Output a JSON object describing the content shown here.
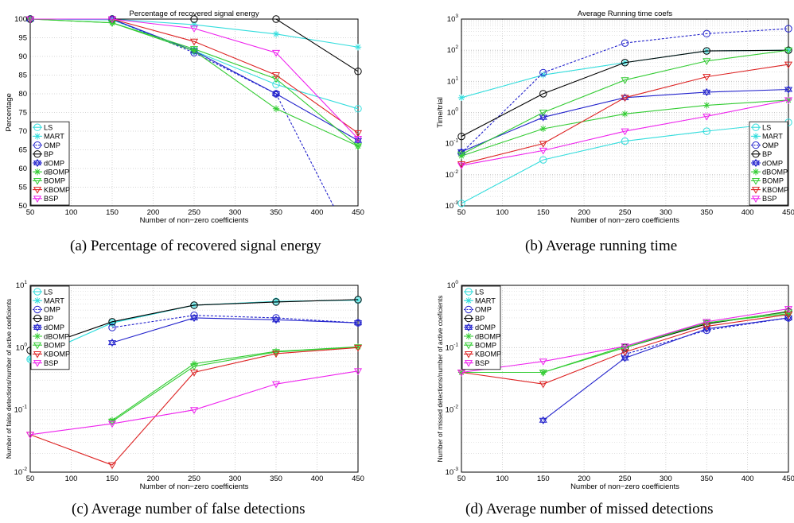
{
  "captions": {
    "a": "(a) Percentage of recovered signal energy",
    "b": "(b) Average running time",
    "c": "(c) Average number of false detections",
    "d": "(d) Average number of missed detections"
  },
  "legend_entries": [
    "LS",
    "MART",
    "OMP",
    "BP",
    "dOMP",
    "dBOMP",
    "BOMP",
    "KBOMP",
    "BSP"
  ],
  "series_styles": [
    {
      "name": "LS",
      "color": "#33dddd",
      "marker": "circle",
      "dash": false
    },
    {
      "name": "MART",
      "color": "#33dddd",
      "marker": "star",
      "dash": false
    },
    {
      "name": "OMP",
      "color": "#2222cc",
      "marker": "circle",
      "dash": true
    },
    {
      "name": "BP",
      "color": "#000000",
      "marker": "circle",
      "dash": false
    },
    {
      "name": "dOMP",
      "color": "#2222cc",
      "marker": "hexagram",
      "dash": false
    },
    {
      "name": "dBOMP",
      "color": "#33cc33",
      "marker": "star",
      "dash": false
    },
    {
      "name": "BOMP",
      "color": "#33cc33",
      "marker": "triangle-down",
      "dash": false
    },
    {
      "name": "KBOMP",
      "color": "#dd2222",
      "marker": "triangle-down",
      "dash": false
    },
    {
      "name": "BSP",
      "color": "#ee22ee",
      "marker": "triangle-down",
      "dash": false
    }
  ],
  "chart_data": [
    {
      "id": "a",
      "type": "line",
      "title": "Percentage of recovered signal energy",
      "xlabel": "Number of non−zero coefficients",
      "ylabel": "Percentage",
      "xlim": [
        50,
        450
      ],
      "ylim": [
        50,
        100
      ],
      "scale": "linear",
      "xticks": [
        "50",
        "100",
        "150",
        "200",
        "250",
        "300",
        "350",
        "400",
        "450"
      ],
      "yticks": [
        "50",
        "55",
        "60",
        "65",
        "70",
        "75",
        "80",
        "85",
        "90",
        "95",
        "100"
      ],
      "legend_position": "bottom-left",
      "series": [
        {
          "name": "LS",
          "x": [
            50,
            150,
            250,
            350,
            450
          ],
          "y": [
            100,
            99.8,
            91.5,
            82.5,
            76
          ]
        },
        {
          "name": "MART",
          "x": [
            50,
            150,
            250,
            350,
            450
          ],
          "y": [
            100,
            100,
            98.5,
            96,
            92.5
          ]
        },
        {
          "name": "OMP",
          "x": [
            50,
            150,
            250,
            350,
            420
          ],
          "y": [
            100,
            100,
            91,
            80,
            50
          ]
        },
        {
          "name": "BP",
          "x": [
            50,
            150,
            250,
            350,
            450
          ],
          "y": [
            100,
            100,
            100,
            100,
            86
          ]
        },
        {
          "name": "dOMP",
          "x": [
            50,
            150,
            250,
            350,
            450
          ],
          "y": [
            100,
            100,
            91.5,
            80,
            67.5
          ]
        },
        {
          "name": "dBOMP",
          "x": [
            50,
            150,
            250,
            350,
            450
          ],
          "y": [
            100,
            99,
            91.5,
            76,
            66
          ]
        },
        {
          "name": "BOMP",
          "x": [
            50,
            150,
            250,
            350,
            450
          ],
          "y": [
            100,
            99,
            92,
            84,
            66
          ]
        },
        {
          "name": "KBOMP",
          "x": [
            50,
            150,
            250,
            350,
            450
          ],
          "y": [
            100,
            100,
            94,
            85,
            69.5
          ]
        },
        {
          "name": "BSP",
          "x": [
            50,
            150,
            250,
            350,
            450
          ],
          "y": [
            100,
            100,
            97.5,
            91,
            68
          ]
        }
      ]
    },
    {
      "id": "b",
      "type": "line",
      "title": "Average Running time coefs",
      "xlabel": "Number of non−zero coefficients",
      "ylabel": "Time/trial",
      "xlim": [
        50,
        450
      ],
      "ylim_exp": [
        -3,
        3
      ],
      "scale": "log",
      "xticks": [
        "50",
        "100",
        "150",
        "200",
        "250",
        "300",
        "350",
        "400",
        "450"
      ],
      "legend_position": "bottom-right",
      "series": [
        {
          "name": "LS",
          "x": [
            50,
            150,
            250,
            350,
            450
          ],
          "y": [
            0.0012,
            0.03,
            0.12,
            0.25,
            0.48
          ]
        },
        {
          "name": "MART",
          "x": [
            50,
            150,
            250,
            350,
            450
          ],
          "y": [
            3,
            16,
            40,
            95,
            100
          ]
        },
        {
          "name": "OMP",
          "x": [
            50,
            150,
            250,
            350,
            450
          ],
          "y": [
            0.05,
            19,
            170,
            340,
            490
          ]
        },
        {
          "name": "BP",
          "x": [
            50,
            150,
            250,
            350,
            450
          ],
          "y": [
            0.17,
            4,
            40,
            95,
            100
          ]
        },
        {
          "name": "dOMP",
          "x": [
            50,
            150,
            250,
            350,
            450
          ],
          "y": [
            0.055,
            0.7,
            3,
            4.5,
            5.5
          ]
        },
        {
          "name": "dBOMP",
          "x": [
            50,
            150,
            250,
            350,
            450
          ],
          "y": [
            0.04,
            0.3,
            0.9,
            1.7,
            2.5
          ]
        },
        {
          "name": "BOMP",
          "x": [
            50,
            150,
            250,
            350,
            450
          ],
          "y": [
            0.045,
            1,
            11,
            45,
            100
          ]
        },
        {
          "name": "KBOMP",
          "x": [
            50,
            150,
            250,
            350,
            450
          ],
          "y": [
            0.022,
            0.1,
            3,
            14,
            35
          ]
        },
        {
          "name": "BSP",
          "x": [
            50,
            150,
            250,
            350,
            450
          ],
          "y": [
            0.02,
            0.06,
            0.25,
            0.75,
            2.5
          ]
        }
      ]
    },
    {
      "id": "c",
      "type": "line",
      "title": "",
      "xlabel": "Number of non−zero coefficients",
      "ylabel": "Number of false detections/number of active coeficients",
      "xlim": [
        50,
        450
      ],
      "ylim_exp": [
        -2,
        1
      ],
      "scale": "log",
      "xticks": [
        "50",
        "100",
        "150",
        "200",
        "250",
        "300",
        "350",
        "400",
        "450"
      ],
      "legend_position": "top-left",
      "series": [
        {
          "name": "LS",
          "x": [
            50,
            150,
            250,
            350,
            450
          ],
          "y": [
            0.65,
            2.5,
            4.8,
            5.5,
            5.8
          ]
        },
        {
          "name": "MART",
          "x": [
            50,
            150,
            250,
            350,
            450
          ],
          "y": [
            0.65,
            2.5,
            4.8,
            5.5,
            5.8
          ]
        },
        {
          "name": "OMP",
          "x": [
            150,
            250,
            350,
            450
          ],
          "y": [
            2.1,
            3.3,
            3,
            2.5
          ]
        },
        {
          "name": "BP",
          "x": [
            50,
            150,
            250,
            350,
            450
          ],
          "y": [
            0.9,
            2.6,
            4.8,
            5.4,
            5.9
          ]
        },
        {
          "name": "dOMP",
          "x": [
            150,
            250,
            350,
            450
          ],
          "y": [
            1.2,
            3,
            2.8,
            2.5
          ]
        },
        {
          "name": "dBOMP",
          "x": [
            150,
            250,
            350,
            450
          ],
          "y": [
            0.068,
            0.55,
            0.87,
            1.03
          ]
        },
        {
          "name": "BOMP",
          "x": [
            150,
            250,
            350,
            450
          ],
          "y": [
            0.065,
            0.5,
            0.85,
            1.02
          ]
        },
        {
          "name": "KBOMP",
          "x": [
            50,
            150,
            250,
            350,
            450
          ],
          "y": [
            0.04,
            0.013,
            0.4,
            0.8,
            1
          ]
        },
        {
          "name": "BSP",
          "x": [
            50,
            150,
            250,
            350,
            450
          ],
          "y": [
            0.04,
            0.06,
            0.1,
            0.26,
            0.42
          ]
        }
      ]
    },
    {
      "id": "d",
      "type": "line",
      "title": "",
      "xlabel": "Number of non−zero coefficients",
      "ylabel": "Number of missed detections/number of active coeficients",
      "xlim": [
        50,
        450
      ],
      "ylim_exp": [
        -3,
        0
      ],
      "scale": "log",
      "xticks": [
        "50",
        "100",
        "150",
        "200",
        "250",
        "300",
        "350",
        "400",
        "450"
      ],
      "legend_position": "top-left",
      "series": [
        {
          "name": "OMP",
          "x": [
            250,
            350,
            450
          ],
          "y": [
            0.078,
            0.19,
            0.3
          ]
        },
        {
          "name": "BP",
          "x": [
            250,
            350,
            450
          ],
          "y": [
            0.1,
            0.24,
            0.38
          ]
        },
        {
          "name": "dOMP",
          "x": [
            150,
            250,
            350,
            450
          ],
          "y": [
            0.0068,
            0.068,
            0.2,
            0.3
          ]
        },
        {
          "name": "dBOMP",
          "x": [
            50,
            150,
            250,
            350,
            450
          ],
          "y": [
            0.04,
            0.04,
            0.1,
            0.25,
            0.35
          ]
        },
        {
          "name": "BOMP",
          "x": [
            50,
            150,
            250,
            350,
            450
          ],
          "y": [
            0.04,
            0.04,
            0.105,
            0.25,
            0.37
          ]
        },
        {
          "name": "KBOMP",
          "x": [
            50,
            150,
            250,
            350,
            450
          ],
          "y": [
            0.04,
            0.026,
            0.085,
            0.22,
            0.34
          ]
        },
        {
          "name": "BSP",
          "x": [
            50,
            150,
            250,
            350,
            450
          ],
          "y": [
            0.04,
            0.06,
            0.105,
            0.26,
            0.42
          ]
        }
      ]
    }
  ]
}
